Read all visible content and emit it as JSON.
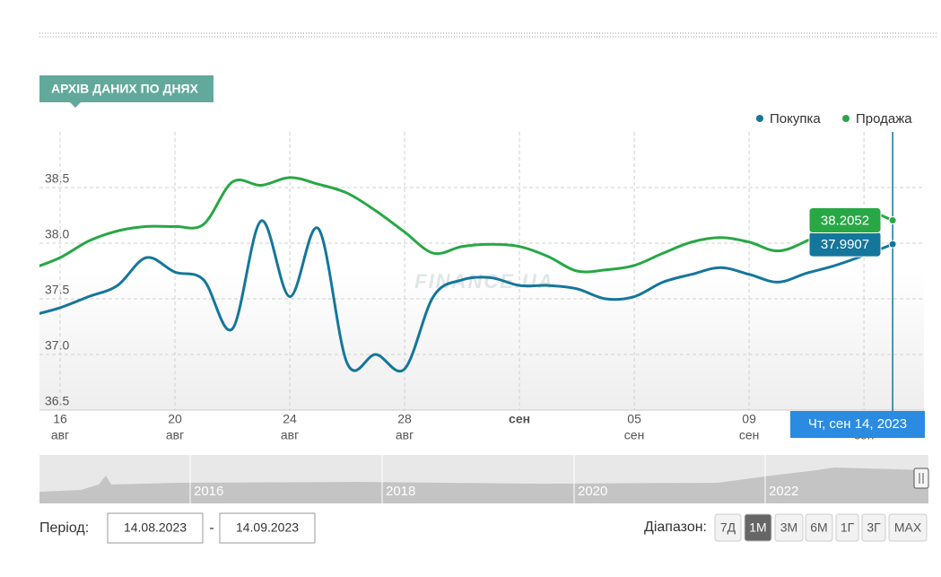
{
  "header": {
    "title": "АРХІВ ДАНИХ ПО ДНЯХ"
  },
  "chart_data": {
    "type": "line",
    "x": [
      "2023-08-15",
      "2023-08-16",
      "2023-08-17",
      "2023-08-18",
      "2023-08-19",
      "2023-08-20",
      "2023-08-21",
      "2023-08-22",
      "2023-08-23",
      "2023-08-24",
      "2023-08-25",
      "2023-08-26",
      "2023-08-27",
      "2023-08-28",
      "2023-08-29",
      "2023-08-30",
      "2023-08-31",
      "2023-09-01",
      "2023-09-02",
      "2023-09-03",
      "2023-09-04",
      "2023-09-05",
      "2023-09-06",
      "2023-09-07",
      "2023-09-08",
      "2023-09-09",
      "2023-09-10",
      "2023-09-11",
      "2023-09-12",
      "2023-09-13",
      "2023-09-14"
    ],
    "series": [
      {
        "name": "Покупка",
        "color": "#15769b",
        "values": [
          37.35,
          37.42,
          37.52,
          37.62,
          37.87,
          37.74,
          37.67,
          37.23,
          38.2,
          37.52,
          38.13,
          36.92,
          37.0,
          36.87,
          37.52,
          37.67,
          37.69,
          37.62,
          37.62,
          37.59,
          37.5,
          37.52,
          37.65,
          37.72,
          37.78,
          37.72,
          37.65,
          37.73,
          37.8,
          37.89,
          37.9907
        ]
      },
      {
        "name": "Продажа",
        "color": "#28a745",
        "values": [
          37.77,
          37.87,
          38.02,
          38.11,
          38.15,
          38.15,
          38.17,
          38.55,
          38.52,
          38.59,
          38.53,
          38.45,
          38.29,
          38.1,
          37.91,
          37.97,
          37.99,
          37.97,
          37.88,
          37.75,
          37.76,
          37.8,
          37.91,
          38.01,
          38.05,
          38.01,
          37.93,
          38.02,
          38.17,
          38.29,
          38.2052
        ]
      }
    ],
    "xlim": [
      "2023-08-15T06:45:00Z",
      "2023-09-15T02:10:00Z"
    ],
    "ylim": [
      36.5,
      39.0
    ],
    "yticks": [
      36.5,
      {
        "value": 37,
        "label": "37.0"
      },
      37.5,
      {
        "value": 38,
        "label": "38.0"
      },
      38.5
    ],
    "xticks": [
      {
        "value": "2023-08-16",
        "label": "16",
        "sublabel": "авг"
      },
      {
        "value": "2023-08-20",
        "label": "20",
        "sublabel": "авг"
      },
      {
        "value": "2023-08-24",
        "label": "24",
        "sublabel": "авг"
      },
      {
        "value": "2023-08-28",
        "label": "28",
        "sublabel": "авг"
      },
      {
        "value": "2023-09-01",
        "label": "сен"
      },
      {
        "value": "2023-09-05",
        "label": "05",
        "sublabel": "сен"
      },
      {
        "value": "2023-09-09",
        "label": "09",
        "sublabel": "сен"
      },
      {
        "value": "2023-09-13",
        "sublabel": "сен"
      }
    ],
    "grid": true,
    "legend": "top-right",
    "tooltip": "Чт, сен 14, 2023",
    "watermark": "FINANCE.UA"
  },
  "navigator": {
    "labels": [
      "2016",
      "2018",
      "2020",
      "2022"
    ]
  },
  "controls": {
    "period_label": "Період:",
    "from": "14.08.2023",
    "separator": "-",
    "to": "14.09.2023",
    "range_label": "Діапазон:",
    "ranges": [
      "7Д",
      "1М",
      "3М",
      "6М",
      "1Г",
      "3Г",
      "MAX"
    ],
    "active_range": 1
  }
}
